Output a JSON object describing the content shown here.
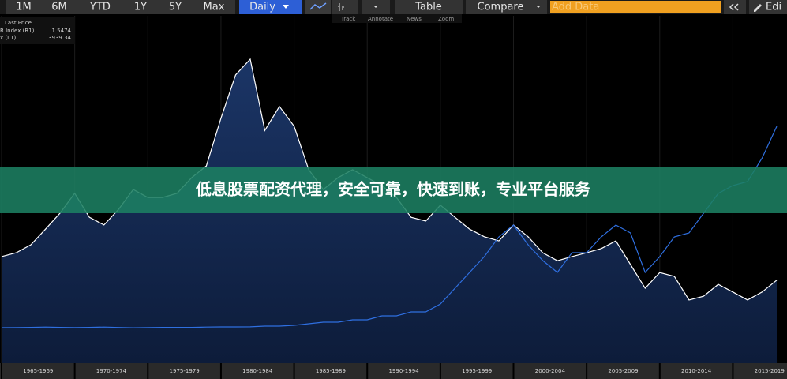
{
  "toolbar": {
    "buttons": [
      "1M",
      "6M",
      "YTD",
      "1Y",
      "5Y",
      "Max"
    ],
    "interval": "Daily",
    "table": "Table",
    "compare": "Compare",
    "add_data": "Add Data",
    "edit": "Edi",
    "tools": [
      "Track",
      "Annotate",
      "News",
      "Zoom"
    ]
  },
  "banner": "低息股票配资代理，安全可靠，快速到账，专业平台服务",
  "chart_data": {
    "type": "line",
    "legend_title": "Last Price",
    "x": [
      1965,
      1966,
      1967,
      1968,
      1969,
      1970,
      1971,
      1972,
      1973,
      1974,
      1975,
      1976,
      1977,
      1978,
      1979,
      1980,
      1981,
      1982,
      1983,
      1984,
      1985,
      1986,
      1987,
      1988,
      1989,
      1990,
      1991,
      1992,
      1993,
      1994,
      1995,
      1996,
      1997,
      1998,
      1999,
      2000,
      2001,
      2002,
      2003,
      2004,
      2005,
      2006,
      2007,
      2008,
      2009,
      2010,
      2011,
      2012,
      2013,
      2014,
      2015,
      2016,
      2017,
      2018
    ],
    "xlim": [
      1965,
      2018.7
    ],
    "xticks": [
      {
        "value": 1965,
        "label": "1965-1969"
      },
      {
        "value": 1970,
        "label": "1970-1974"
      },
      {
        "value": 1975,
        "label": "1975-1979"
      },
      {
        "value": 1980,
        "label": "1980-1984"
      },
      {
        "value": 1985,
        "label": "1985-1989"
      },
      {
        "value": 1990,
        "label": "1990-1994"
      },
      {
        "value": 1995,
        "label": "1995-1999"
      },
      {
        "value": 2000,
        "label": "2000-2004"
      },
      {
        "value": 2005,
        "label": "2005-2009"
      },
      {
        "value": 2010,
        "label": "2010-2014"
      },
      {
        "value": 2015,
        "label": "2015-2019"
      }
    ],
    "ylim": [
      -560,
      5830
    ],
    "y2lim": [
      -1,
      9
    ],
    "grid": true,
    "series": [
      {
        "name": "R Index (R1)",
        "last_value": 1.5474,
        "color": "#ffffff",
        "axis": "y2",
        "values": [
          2.07,
          2.18,
          2.41,
          2.86,
          3.32,
          3.89,
          3.2,
          2.98,
          3.43,
          4.0,
          3.77,
          3.77,
          3.89,
          4.34,
          4.68,
          6.05,
          7.3,
          7.75,
          5.7,
          6.39,
          5.82,
          4.57,
          4.0,
          4.34,
          4.57,
          4.34,
          4.11,
          3.77,
          3.2,
          3.09,
          3.55,
          3.2,
          2.86,
          2.64,
          2.52,
          2.98,
          2.64,
          2.18,
          1.95,
          2.07,
          2.18,
          2.3,
          2.52,
          1.84,
          1.16,
          1.61,
          1.5,
          0.82,
          0.93,
          1.27,
          1.05,
          0.82,
          1.05,
          1.39
        ]
      },
      {
        "name": "x (L1)",
        "last_value": 3939.34,
        "color": "#2f6fe0",
        "values": [
          93,
          95,
          100,
          105,
          100,
          95,
          100,
          105,
          98,
          92,
          95,
          100,
          100,
          100,
          105,
          108,
          108,
          110,
          122,
          122,
          137,
          166,
          195,
          195,
          239,
          239,
          311,
          311,
          384,
          384,
          529,
          819,
          1110,
          1400,
          1763,
          1981,
          1618,
          1328,
          1110,
          1473,
          1473,
          1763,
          1981,
          1836,
          1110,
          1400,
          1763,
          1836,
          2199,
          2562,
          2707,
          2780,
          3215,
          3796
        ]
      }
    ]
  }
}
